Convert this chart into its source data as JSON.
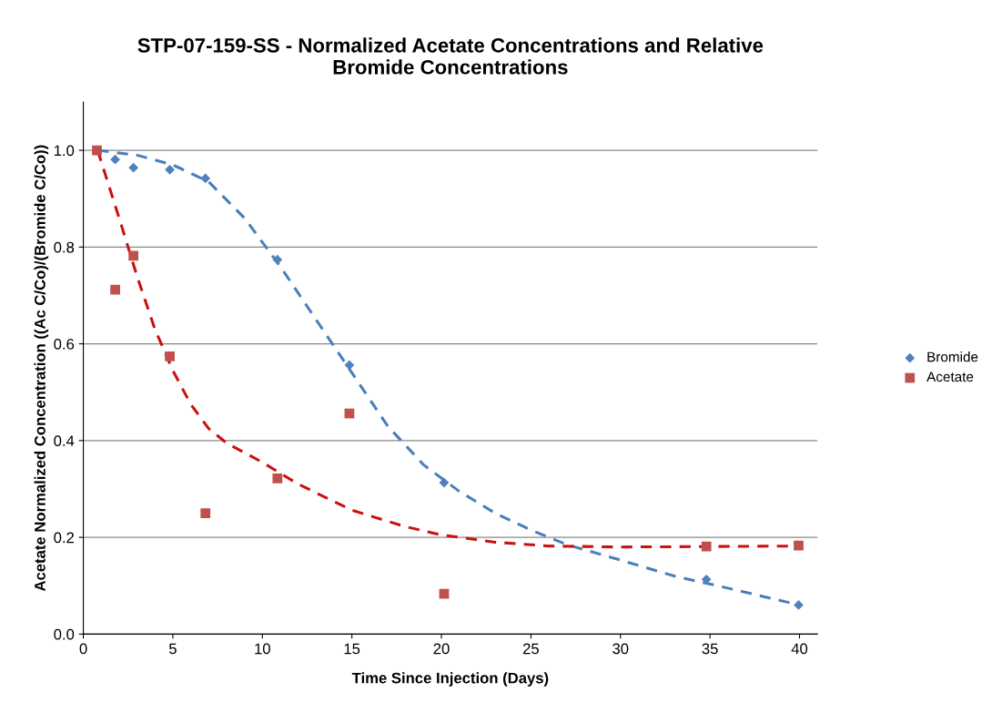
{
  "chart_data": {
    "type": "scatter",
    "title": "STP-07-159-SS - Normalized Acetate Concentrations and Relative\nBromide Concentrations",
    "xlabel": "Time Since Injection (Days)",
    "ylabel": "Acetate Normalized Concentration ((Ac C/Co)/(Bromide C/Co))",
    "xlim": [
      0,
      41
    ],
    "xticks": [
      0,
      5,
      10,
      15,
      20,
      25,
      30,
      35,
      40
    ],
    "ylim": [
      0,
      1.1
    ],
    "yticks": [
      {
        "value": 0,
        "label": "0.0"
      },
      {
        "value": 0.2,
        "label": "0.2"
      },
      {
        "value": 0.4,
        "label": "0.4"
      },
      {
        "value": 0.6,
        "label": "0.6"
      },
      {
        "value": 0.8,
        "label": "0.8"
      },
      {
        "value": 1.0,
        "label": "1.0"
      }
    ],
    "grid": "y",
    "legend": "right",
    "series": [
      {
        "name": "Bromide",
        "marker": "diamond",
        "color": "#4f81bd",
        "x": [
          1.78,
          2.8,
          4.83,
          6.82,
          10.84,
          14.86,
          20.15,
          34.8,
          39.95
        ],
        "values": [
          0.981,
          0.964,
          0.96,
          0.942,
          0.774,
          0.556,
          0.313,
          0.113,
          0.06
        ]
      },
      {
        "name": "Acetate",
        "marker": "square",
        "color": "#c0504d",
        "x": [
          0.76,
          1.78,
          2.8,
          4.83,
          6.82,
          10.84,
          14.86,
          20.15,
          34.8,
          39.95
        ],
        "values": [
          1.0,
          0.712,
          0.782,
          0.574,
          0.25,
          0.322,
          0.456,
          0.083,
          0.181,
          0.183
        ]
      },
      {
        "type": "line",
        "line_style": "dashed",
        "color": "#4a7ebb",
        "x": [
          0.8,
          3,
          5,
          7,
          9,
          11,
          13,
          15,
          17,
          19,
          21,
          23,
          25,
          27,
          30,
          33,
          36,
          40
        ],
        "values": [
          1.0,
          0.99,
          0.97,
          0.935,
          0.86,
          0.76,
          0.65,
          0.54,
          0.43,
          0.35,
          0.295,
          0.25,
          0.215,
          0.185,
          0.153,
          0.12,
          0.095,
          0.06
        ]
      },
      {
        "type": "line",
        "line_style": "dashed",
        "color": "#cc1010",
        "x": [
          0.8,
          2,
          3,
          4,
          5,
          6,
          7,
          8,
          10,
          12,
          15,
          18,
          20,
          23,
          26,
          30,
          40
        ],
        "values": [
          1.0,
          0.86,
          0.74,
          0.63,
          0.545,
          0.475,
          0.425,
          0.395,
          0.355,
          0.31,
          0.256,
          0.222,
          0.205,
          0.19,
          0.182,
          0.18,
          0.182
        ]
      }
    ]
  }
}
